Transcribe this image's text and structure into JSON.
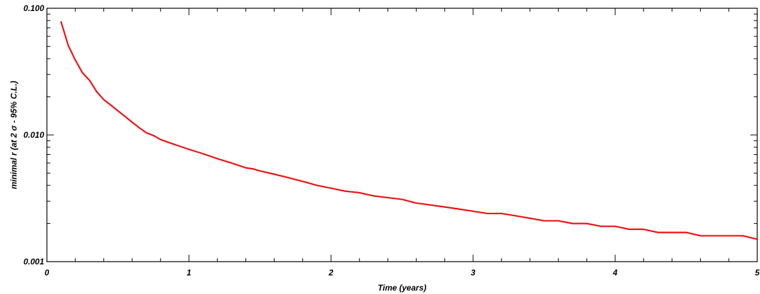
{
  "chart_data": {
    "type": "line",
    "xlabel": "Time (years)",
    "ylabel": "minimal r (at 2 σ - 95% C.L.)",
    "xlim": [
      0,
      5
    ],
    "ylim": [
      0.001,
      0.1
    ],
    "yscale": "log",
    "grid": false,
    "line_color": "#ee1111",
    "x_ticks": [
      {
        "value": 0,
        "label": "0"
      },
      {
        "value": 1,
        "label": "1"
      },
      {
        "value": 2,
        "label": "2"
      },
      {
        "value": 3,
        "label": "3"
      },
      {
        "value": 4,
        "label": "4"
      },
      {
        "value": 5,
        "label": "5"
      }
    ],
    "y_ticks": [
      {
        "value": 0.001,
        "label": "0.001"
      },
      {
        "value": 0.01,
        "label": "0.010"
      },
      {
        "value": 0.1,
        "label": "0.100"
      }
    ],
    "series": [
      {
        "x": [
          0.1,
          0.15,
          0.2,
          0.25,
          0.3,
          0.35,
          0.4,
          0.45,
          0.5,
          0.55,
          0.6,
          0.65,
          0.7,
          0.75,
          0.8,
          0.9,
          1.0,
          1.1,
          1.2,
          1.3,
          1.4,
          1.45,
          1.5,
          1.6,
          1.7,
          1.8,
          1.9,
          2.0,
          2.1,
          2.2,
          2.3,
          2.4,
          2.5,
          2.6,
          2.7,
          2.8,
          2.9,
          3.0,
          3.1,
          3.2,
          3.3,
          3.4,
          3.5,
          3.6,
          3.7,
          3.8,
          3.9,
          4.0,
          4.1,
          4.2,
          4.3,
          4.4,
          4.5,
          4.6,
          4.7,
          4.8,
          4.9,
          5.0
        ],
        "y": [
          0.078,
          0.051,
          0.039,
          0.031,
          0.027,
          0.022,
          0.019,
          0.0172,
          0.0155,
          0.014,
          0.0126,
          0.0114,
          0.0104,
          0.0099,
          0.0092,
          0.0084,
          0.0077,
          0.0071,
          0.0065,
          0.006,
          0.0055,
          0.0054,
          0.0052,
          0.0049,
          0.0046,
          0.0043,
          0.004,
          0.0038,
          0.0036,
          0.0035,
          0.0033,
          0.0032,
          0.0031,
          0.0029,
          0.0028,
          0.0027,
          0.0026,
          0.0025,
          0.0024,
          0.0024,
          0.0023,
          0.0022,
          0.0021,
          0.0021,
          0.002,
          0.002,
          0.0019,
          0.0019,
          0.0018,
          0.0018,
          0.0017,
          0.0017,
          0.0017,
          0.0016,
          0.0016,
          0.0016,
          0.0016,
          0.0015
        ]
      }
    ]
  }
}
